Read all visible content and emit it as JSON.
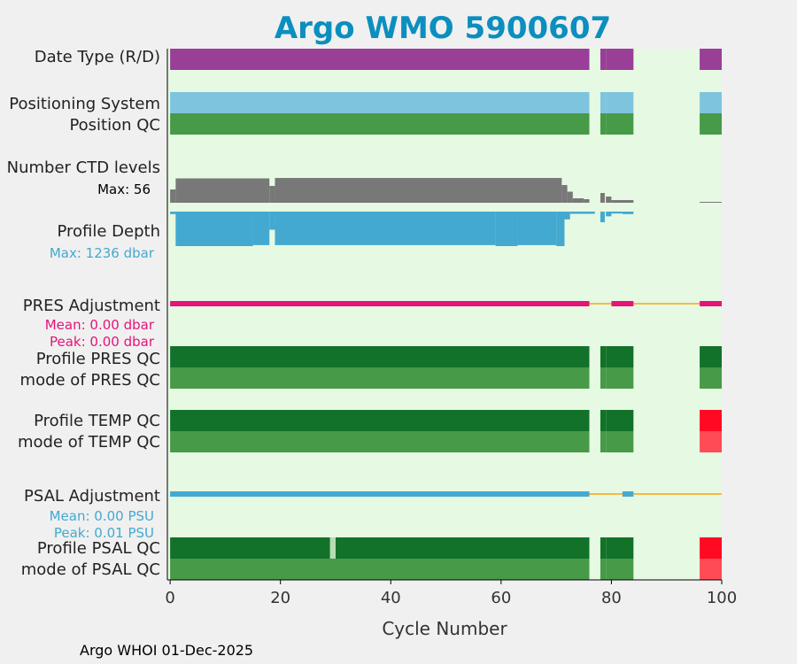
{
  "chart_data": {
    "type": "bar",
    "title": "Argo WMO 5900607",
    "xlabel": "Cycle Number",
    "xlim": [
      -0.5,
      100
    ],
    "xticks": [
      0,
      20,
      40,
      60,
      80,
      100
    ],
    "grid": false,
    "background_color": "#e6f9e2",
    "colors": {
      "date_type": "#993f98",
      "positioning_system": "#7ec4df",
      "position_qc": "#479a47",
      "qc_good_dark": "#12722a",
      "qc_good": "#479a47",
      "qc_bad_dark": "#ff0a22",
      "qc_bad": "#ff4b55",
      "ctd_levels": "#787878",
      "profile_depth": "#44a9d0",
      "pres_adjustment": "#e6137a",
      "psal_adjustment": "#44a9d0",
      "no_adjustment": "#f5b940",
      "psal_qc_gap": "#b7dcb5"
    },
    "present_cycle_ranges": [
      [
        0,
        76
      ],
      [
        78,
        78
      ],
      [
        79,
        84
      ],
      [
        96,
        100
      ]
    ],
    "rows": [
      {
        "key": "date_type",
        "label": "Date Type (R/D)"
      },
      {
        "key": "positioning_system",
        "label": "Positioning System"
      },
      {
        "key": "position_qc",
        "label": "Position QC"
      },
      {
        "key": "ctd_levels",
        "label": "Number CTD levels",
        "max_label": "Max: 56"
      },
      {
        "key": "profile_depth",
        "label": "Profile Depth",
        "max_label": "Max: 1236 dbar"
      },
      {
        "key": "pres_adjustment",
        "label": "PRES Adjustment",
        "mean_label": "Mean: 0.00 dbar",
        "peak_label": "Peak: 0.00 dbar"
      },
      {
        "key": "profile_pres_qc",
        "label": "Profile PRES QC"
      },
      {
        "key": "mode_pres_qc",
        "label": "mode of PRES QC"
      },
      {
        "key": "profile_temp_qc",
        "label": "Profile TEMP QC"
      },
      {
        "key": "mode_temp_qc",
        "label": "mode of TEMP QC"
      },
      {
        "key": "psal_adjustment",
        "label": "PSAL Adjustment",
        "mean_label": "Mean: 0.00 PSU",
        "peak_label": "Peak: 0.01 PSU"
      },
      {
        "key": "profile_psal_qc",
        "label": "Profile PSAL QC"
      },
      {
        "key": "mode_psal_qc",
        "label": "mode of PSAL QC"
      }
    ],
    "ctd_levels": {
      "max": 56,
      "segments": [
        {
          "from": 0,
          "to": 1,
          "value": 30
        },
        {
          "from": 1,
          "to": 18,
          "value": 55
        },
        {
          "from": 18,
          "to": 19,
          "value": 38
        },
        {
          "from": 19,
          "to": 71,
          "value": 56
        },
        {
          "from": 71,
          "to": 72,
          "value": 40
        },
        {
          "from": 72,
          "to": 73,
          "value": 25
        },
        {
          "from": 73,
          "to": 75,
          "value": 10
        },
        {
          "from": 75,
          "to": 76,
          "value": 8
        },
        {
          "from": 78,
          "to": 78.8,
          "value": 22
        },
        {
          "from": 79,
          "to": 80,
          "value": 14
        },
        {
          "from": 80,
          "to": 84,
          "value": 6
        },
        {
          "from": 96,
          "to": 100,
          "value": 2
        }
      ]
    },
    "profile_depth": {
      "max": 1236,
      "segments": [
        {
          "from": 0,
          "to": 1,
          "value": 90
        },
        {
          "from": 1,
          "to": 15,
          "value": 1236
        },
        {
          "from": 15,
          "to": 18,
          "value": 1200
        },
        {
          "from": 18,
          "to": 19,
          "value": 650
        },
        {
          "from": 19,
          "to": 59,
          "value": 1200
        },
        {
          "from": 59,
          "to": 63,
          "value": 1236
        },
        {
          "from": 63,
          "to": 70,
          "value": 1200
        },
        {
          "from": 70,
          "to": 71.5,
          "value": 1236
        },
        {
          "from": 71.5,
          "to": 72.5,
          "value": 280
        },
        {
          "from": 72.5,
          "to": 76,
          "value": 80
        },
        {
          "from": 76,
          "to": 77,
          "value": 80
        },
        {
          "from": 78,
          "to": 78.8,
          "value": 380
        },
        {
          "from": 79,
          "to": 80,
          "value": 170
        },
        {
          "from": 80,
          "to": 82,
          "value": 70
        },
        {
          "from": 82,
          "to": 84,
          "value": 90
        }
      ]
    },
    "pres_adjustment": {
      "mean": 0.0,
      "peak": 0.0,
      "adjusted_ranges": [
        [
          0,
          76
        ],
        [
          80,
          84
        ],
        [
          96,
          100
        ]
      ],
      "unadjusted_ranges": [
        [
          76,
          80
        ],
        [
          84,
          96
        ]
      ]
    },
    "psal_adjustment": {
      "mean": 0.0,
      "peak": 0.01,
      "adjusted_ranges": [
        [
          0,
          76
        ],
        [
          82,
          84
        ]
      ],
      "unadjusted_ranges": [
        [
          76,
          82
        ],
        [
          84,
          100
        ]
      ]
    },
    "qc_rows": {
      "profile_pres_qc": [
        {
          "ranges": [
            [
              0,
              76
            ],
            [
              78,
              78
            ],
            [
              79,
              84
            ],
            [
              96,
              100
            ]
          ],
          "color": "qc_good_dark"
        }
      ],
      "mode_pres_qc": [
        {
          "ranges": [
            [
              0,
              76
            ],
            [
              78,
              78
            ],
            [
              79,
              84
            ],
            [
              96,
              100
            ]
          ],
          "color": "qc_good"
        }
      ],
      "profile_temp_qc": [
        {
          "ranges": [
            [
              0,
              76
            ],
            [
              78,
              78
            ],
            [
              79,
              84
            ]
          ],
          "color": "qc_good_dark"
        },
        {
          "ranges": [
            [
              96,
              100
            ]
          ],
          "color": "qc_bad_dark"
        }
      ],
      "mode_temp_qc": [
        {
          "ranges": [
            [
              0,
              76
            ],
            [
              78,
              78
            ],
            [
              79,
              84
            ]
          ],
          "color": "qc_good"
        },
        {
          "ranges": [
            [
              96,
              100
            ]
          ],
          "color": "qc_bad"
        }
      ],
      "profile_psal_qc": [
        {
          "ranges": [
            [
              0,
              29
            ],
            [
              30,
              76
            ],
            [
              78,
              78
            ],
            [
              79,
              84
            ]
          ],
          "color": "qc_good_dark"
        },
        {
          "ranges": [
            [
              29,
              30
            ]
          ],
          "color": "psal_qc_gap"
        },
        {
          "ranges": [
            [
              96,
              100
            ]
          ],
          "color": "qc_bad_dark"
        }
      ],
      "mode_psal_qc": [
        {
          "ranges": [
            [
              0,
              76
            ],
            [
              78,
              78
            ],
            [
              79,
              84
            ]
          ],
          "color": "qc_good"
        },
        {
          "ranges": [
            [
              96,
              100
            ]
          ],
          "color": "qc_bad"
        }
      ]
    }
  },
  "footer": "Argo WHOI 01-Dec-2025"
}
